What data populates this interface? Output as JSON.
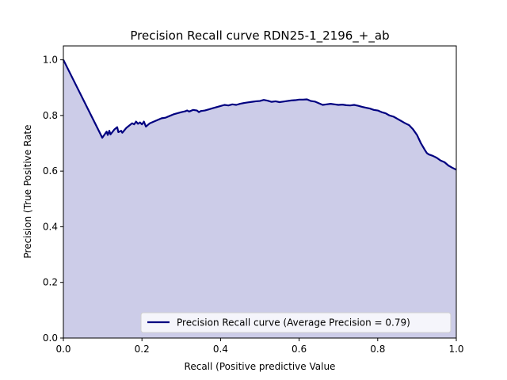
{
  "chart_data": {
    "type": "area",
    "title": "Precision Recall curve RDN25-1_2196_+_ab",
    "xlabel": "Recall (Positive predictive Value",
    "ylabel": "Precision (True Positive Rate",
    "xlim": [
      0.0,
      1.0
    ],
    "ylim": [
      0.0,
      1.05
    ],
    "xticks": [
      "0.0",
      "0.2",
      "0.4",
      "0.6",
      "0.8",
      "1.0"
    ],
    "yticks": [
      "0.0",
      "0.2",
      "0.4",
      "0.6",
      "0.8",
      "1.0"
    ],
    "grid": false,
    "legend": {
      "position": "lower-right"
    },
    "series": [
      {
        "name": "Precision Recall curve (Average Precision = 0.79)",
        "color": "#000080",
        "fill_color": "#cccce8",
        "x": [
          0.0,
          0.099,
          0.11,
          0.113,
          0.117,
          0.12,
          0.13,
          0.137,
          0.14,
          0.147,
          0.15,
          0.16,
          0.175,
          0.18,
          0.185,
          0.19,
          0.195,
          0.2,
          0.205,
          0.21,
          0.22,
          0.23,
          0.24,
          0.25,
          0.26,
          0.27,
          0.28,
          0.29,
          0.3,
          0.31,
          0.315,
          0.32,
          0.33,
          0.34,
          0.345,
          0.35,
          0.36,
          0.37,
          0.38,
          0.39,
          0.4,
          0.41,
          0.42,
          0.43,
          0.44,
          0.45,
          0.46,
          0.47,
          0.48,
          0.49,
          0.5,
          0.51,
          0.52,
          0.53,
          0.54,
          0.55,
          0.56,
          0.57,
          0.58,
          0.59,
          0.6,
          0.61,
          0.62,
          0.63,
          0.64,
          0.65,
          0.66,
          0.67,
          0.68,
          0.69,
          0.7,
          0.71,
          0.72,
          0.73,
          0.74,
          0.75,
          0.76,
          0.77,
          0.78,
          0.79,
          0.8,
          0.81,
          0.82,
          0.83,
          0.84,
          0.85,
          0.86,
          0.87,
          0.88,
          0.89,
          0.9,
          0.905,
          0.91,
          0.915,
          0.92,
          0.925,
          0.93,
          0.94,
          0.95,
          0.96,
          0.97,
          0.98,
          0.99,
          1.0
        ],
        "y": [
          1.0,
          0.72,
          0.742,
          0.73,
          0.745,
          0.732,
          0.75,
          0.758,
          0.74,
          0.745,
          0.738,
          0.755,
          0.772,
          0.768,
          0.778,
          0.77,
          0.775,
          0.768,
          0.778,
          0.76,
          0.772,
          0.778,
          0.784,
          0.79,
          0.792,
          0.798,
          0.804,
          0.808,
          0.812,
          0.815,
          0.818,
          0.814,
          0.82,
          0.818,
          0.812,
          0.816,
          0.818,
          0.822,
          0.826,
          0.83,
          0.834,
          0.838,
          0.836,
          0.84,
          0.838,
          0.842,
          0.845,
          0.847,
          0.849,
          0.851,
          0.852,
          0.856,
          0.853,
          0.849,
          0.851,
          0.848,
          0.85,
          0.852,
          0.854,
          0.855,
          0.857,
          0.857,
          0.858,
          0.852,
          0.85,
          0.844,
          0.838,
          0.84,
          0.842,
          0.84,
          0.838,
          0.839,
          0.837,
          0.836,
          0.838,
          0.835,
          0.831,
          0.828,
          0.825,
          0.82,
          0.818,
          0.812,
          0.808,
          0.8,
          0.796,
          0.788,
          0.78,
          0.772,
          0.765,
          0.75,
          0.73,
          0.715,
          0.7,
          0.688,
          0.676,
          0.665,
          0.66,
          0.655,
          0.648,
          0.638,
          0.632,
          0.62,
          0.612,
          0.605
        ]
      }
    ]
  }
}
